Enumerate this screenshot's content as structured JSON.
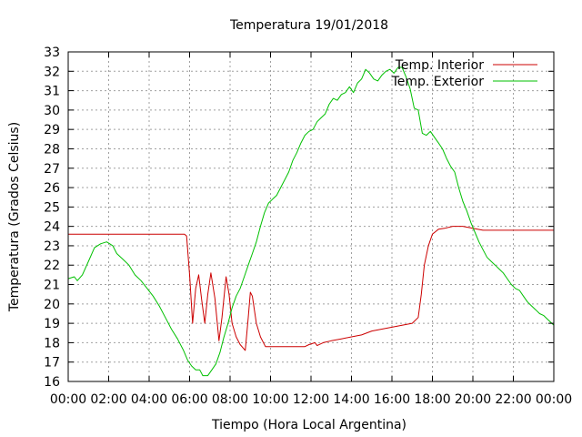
{
  "chart_data": {
    "type": "line",
    "title": "Temperatura 19/01/2018",
    "xlabel": "Tiempo (Hora Local Argentina)",
    "ylabel": "Temperatura (Grados Celsius)",
    "xlim": [
      0,
      24
    ],
    "ylim": [
      16,
      33
    ],
    "x_ticks": [
      "00:00",
      "02:00",
      "04:00",
      "06:00",
      "08:00",
      "10:00",
      "12:00",
      "14:00",
      "16:00",
      "18:00",
      "20:00",
      "22:00",
      "00:00"
    ],
    "y_ticks": [
      16,
      17,
      18,
      19,
      20,
      21,
      22,
      23,
      24,
      25,
      26,
      27,
      28,
      29,
      30,
      31,
      32,
      33
    ],
    "grid": true,
    "legend_position": "top-right",
    "series": [
      {
        "name": "Temp. Interior",
        "color": "#cc0000",
        "points": [
          [
            0,
            23.6
          ],
          [
            1,
            23.6
          ],
          [
            2,
            23.6
          ],
          [
            3,
            23.6
          ],
          [
            4,
            23.6
          ],
          [
            5,
            23.6
          ],
          [
            5.75,
            23.6
          ],
          [
            5.85,
            23.5
          ],
          [
            6.0,
            21.5
          ],
          [
            6.15,
            19.0
          ],
          [
            6.3,
            20.8
          ],
          [
            6.45,
            21.5
          ],
          [
            6.6,
            20.2
          ],
          [
            6.75,
            19.0
          ],
          [
            6.9,
            20.5
          ],
          [
            7.05,
            21.6
          ],
          [
            7.25,
            20.3
          ],
          [
            7.45,
            18.1
          ],
          [
            7.6,
            19.3
          ],
          [
            7.8,
            21.4
          ],
          [
            7.95,
            20.5
          ],
          [
            8.1,
            19.0
          ],
          [
            8.3,
            18.3
          ],
          [
            8.5,
            17.9
          ],
          [
            8.75,
            17.6
          ],
          [
            8.9,
            19.3
          ],
          [
            9.0,
            20.6
          ],
          [
            9.1,
            20.4
          ],
          [
            9.3,
            19.0
          ],
          [
            9.5,
            18.3
          ],
          [
            9.75,
            17.8
          ],
          [
            10,
            17.8
          ],
          [
            11,
            17.8
          ],
          [
            11.7,
            17.8
          ],
          [
            11.9,
            17.9
          ],
          [
            12.2,
            18.0
          ],
          [
            12.3,
            17.85
          ],
          [
            12.6,
            18.0
          ],
          [
            13,
            18.1
          ],
          [
            13.5,
            18.2
          ],
          [
            14,
            18.3
          ],
          [
            14.5,
            18.4
          ],
          [
            15,
            18.6
          ],
          [
            15.5,
            18.7
          ],
          [
            16,
            18.8
          ],
          [
            16.5,
            18.9
          ],
          [
            17,
            19.0
          ],
          [
            17.3,
            19.3
          ],
          [
            17.45,
            20.5
          ],
          [
            17.6,
            22.0
          ],
          [
            17.8,
            23.0
          ],
          [
            18.0,
            23.6
          ],
          [
            18.3,
            23.85
          ],
          [
            18.6,
            23.9
          ],
          [
            19,
            24.0
          ],
          [
            19.5,
            24.0
          ],
          [
            20,
            23.9
          ],
          [
            20.5,
            23.8
          ],
          [
            21,
            23.8
          ],
          [
            22,
            23.8
          ],
          [
            23,
            23.8
          ],
          [
            24,
            23.8
          ]
        ]
      },
      {
        "name": "Temp. Exterior",
        "color": "#00c000",
        "points": [
          [
            0,
            21.3
          ],
          [
            0.3,
            21.4
          ],
          [
            0.45,
            21.2
          ],
          [
            0.7,
            21.5
          ],
          [
            1,
            22.2
          ],
          [
            1.3,
            22.9
          ],
          [
            1.6,
            23.1
          ],
          [
            1.9,
            23.2
          ],
          [
            2.2,
            23.0
          ],
          [
            2.4,
            22.6
          ],
          [
            2.7,
            22.3
          ],
          [
            3,
            22.0
          ],
          [
            3.3,
            21.5
          ],
          [
            3.6,
            21.2
          ],
          [
            3.9,
            20.8
          ],
          [
            4.2,
            20.4
          ],
          [
            4.5,
            19.9
          ],
          [
            4.8,
            19.3
          ],
          [
            5.1,
            18.7
          ],
          [
            5.4,
            18.2
          ],
          [
            5.7,
            17.6
          ],
          [
            5.9,
            17.1
          ],
          [
            6.1,
            16.8
          ],
          [
            6.3,
            16.6
          ],
          [
            6.5,
            16.6
          ],
          [
            6.65,
            16.3
          ],
          [
            6.9,
            16.3
          ],
          [
            7.1,
            16.6
          ],
          [
            7.3,
            16.9
          ],
          [
            7.5,
            17.5
          ],
          [
            7.7,
            18.3
          ],
          [
            7.9,
            19.0
          ],
          [
            8.1,
            19.8
          ],
          [
            8.3,
            20.4
          ],
          [
            8.5,
            20.8
          ],
          [
            8.7,
            21.4
          ],
          [
            8.9,
            22.0
          ],
          [
            9.1,
            22.6
          ],
          [
            9.3,
            23.2
          ],
          [
            9.5,
            24.0
          ],
          [
            9.7,
            24.7
          ],
          [
            9.9,
            25.2
          ],
          [
            10.1,
            25.4
          ],
          [
            10.3,
            25.6
          ],
          [
            10.5,
            26.0
          ],
          [
            10.7,
            26.4
          ],
          [
            10.9,
            26.8
          ],
          [
            11.1,
            27.4
          ],
          [
            11.3,
            27.8
          ],
          [
            11.5,
            28.3
          ],
          [
            11.7,
            28.7
          ],
          [
            11.9,
            28.9
          ],
          [
            12.1,
            29.0
          ],
          [
            12.3,
            29.4
          ],
          [
            12.5,
            29.6
          ],
          [
            12.7,
            29.8
          ],
          [
            12.9,
            30.3
          ],
          [
            13.1,
            30.6
          ],
          [
            13.3,
            30.5
          ],
          [
            13.5,
            30.8
          ],
          [
            13.7,
            30.9
          ],
          [
            13.9,
            31.2
          ],
          [
            14.1,
            30.9
          ],
          [
            14.3,
            31.4
          ],
          [
            14.5,
            31.6
          ],
          [
            14.7,
            32.1
          ],
          [
            14.9,
            31.9
          ],
          [
            15.1,
            31.6
          ],
          [
            15.3,
            31.5
          ],
          [
            15.5,
            31.8
          ],
          [
            15.7,
            32.0
          ],
          [
            15.9,
            32.1
          ],
          [
            16.1,
            31.9
          ],
          [
            16.3,
            32.2
          ],
          [
            16.5,
            32.2
          ],
          [
            16.7,
            31.7
          ],
          [
            16.9,
            31.1
          ],
          [
            17.1,
            30.1
          ],
          [
            17.3,
            30.0
          ],
          [
            17.5,
            28.8
          ],
          [
            17.7,
            28.7
          ],
          [
            17.9,
            28.9
          ],
          [
            18.1,
            28.6
          ],
          [
            18.3,
            28.3
          ],
          [
            18.5,
            28.0
          ],
          [
            18.7,
            27.5
          ],
          [
            18.9,
            27.1
          ],
          [
            19.1,
            26.8
          ],
          [
            19.3,
            26.0
          ],
          [
            19.5,
            25.3
          ],
          [
            19.7,
            24.8
          ],
          [
            19.9,
            24.2
          ],
          [
            20.1,
            23.7
          ],
          [
            20.3,
            23.2
          ],
          [
            20.5,
            22.8
          ],
          [
            20.7,
            22.4
          ],
          [
            20.9,
            22.2
          ],
          [
            21.1,
            22.0
          ],
          [
            21.3,
            21.8
          ],
          [
            21.5,
            21.6
          ],
          [
            21.7,
            21.3
          ],
          [
            21.9,
            21.0
          ],
          [
            22.1,
            20.8
          ],
          [
            22.3,
            20.7
          ],
          [
            22.5,
            20.4
          ],
          [
            22.7,
            20.1
          ],
          [
            22.9,
            19.9
          ],
          [
            23.1,
            19.7
          ],
          [
            23.3,
            19.5
          ],
          [
            23.5,
            19.4
          ],
          [
            23.7,
            19.2
          ],
          [
            23.9,
            19.0
          ],
          [
            24,
            18.9
          ]
        ]
      }
    ]
  }
}
